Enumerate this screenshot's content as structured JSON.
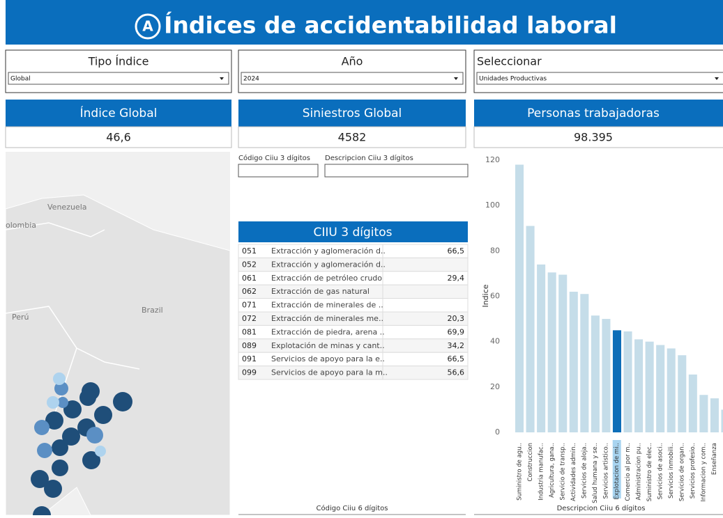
{
  "header": {
    "title": "Índices de accidentabilidad laboral",
    "logo": "A"
  },
  "filters": [
    {
      "label": "Tipo Índice",
      "value": "Global"
    },
    {
      "label": "Año",
      "value": "2024"
    },
    {
      "label": "Seleccionar",
      "value": "Unidades Productivas"
    }
  ],
  "kpis": [
    {
      "title": "Índice Global",
      "value": "46,6"
    },
    {
      "title": "Siniestros Global",
      "value": "4582"
    },
    {
      "title": "Personas trabajadoras",
      "value": "98.395"
    }
  ],
  "map": {
    "labels": [
      "Venezuela",
      "olombia",
      "Perú",
      "Brazil"
    ]
  },
  "search": {
    "code_label": "Código Ciiu 3 dígitos",
    "desc_label": "Descripcion Ciiu 3 dígitos"
  },
  "table": {
    "title": "CIIU 3 dígitos",
    "rows": [
      [
        "051",
        "Extracción y aglomeración d..",
        "66,5"
      ],
      [
        "052",
        "Extracción y aglomeración d..",
        null
      ],
      [
        "061",
        "Extracción de petróleo crudo",
        "29,4"
      ],
      [
        "062",
        "Extracción de gas natural",
        null
      ],
      [
        "071",
        "Extracción de minerales de ..",
        null
      ],
      [
        "072",
        "Extracción de minerales me..",
        "20,3"
      ],
      [
        "081",
        "Extracción de piedra, arena ..",
        "69,9"
      ],
      [
        "089",
        "Explotación de minas y cant..",
        "34,2"
      ],
      [
        "091",
        "Servicios de apoyo para la e..",
        "66,5"
      ],
      [
        "099",
        "Servicios de apoyo para la m..",
        "56,6"
      ]
    ]
  },
  "footer": {
    "code6_label": "Código Ciiu 6 dígitos",
    "desc6_label": "Descripcion Ciiu 6 dígitos"
  },
  "chart_data": {
    "type": "bar",
    "y_label": "Indice",
    "categories": [
      "Suministro de agu..",
      "Construccion",
      "Industria manufac..",
      "Agricultura, gana..",
      "Servicio de transp..",
      "Actividades admin..",
      "Servicios de aloja..",
      "Salud humana y se..",
      "Servicios artistico..",
      "Explotacion de mi..",
      "Comercio al por m..",
      "Administracion pu..",
      "Suministro de elec..",
      "Servicios de asoci..",
      "Servicios inmobili..",
      "Servicios de organ..",
      "Servicios profesio..",
      "Informacion y com..",
      "Enseñanza",
      null
    ],
    "values": [
      118,
      91,
      74,
      70.5,
      69.5,
      62,
      61,
      51.5,
      50,
      45,
      44.5,
      41,
      40,
      38.5,
      37,
      34,
      25.5,
      16.5,
      15,
      10
    ],
    "colors": [
      "#c5dde9",
      "#c5dde9",
      "#c5dde9",
      "#c5dde9",
      "#c5dde9",
      "#c5dde9",
      "#c5dde9",
      "#c5dde9",
      "#c5dde9",
      "#0d6eb8",
      "#c5dde9",
      "#c5dde9",
      "#c5dde9",
      "#c5dde9",
      "#c5dde9",
      "#c5dde9",
      "#c5dde9",
      "#c5dde9",
      "#c5dde9",
      "#c5dde9"
    ],
    "ylim": [
      0,
      120
    ],
    "yticks": [
      0,
      20,
      40,
      60,
      80,
      100,
      120
    ],
    "grid": false
  }
}
